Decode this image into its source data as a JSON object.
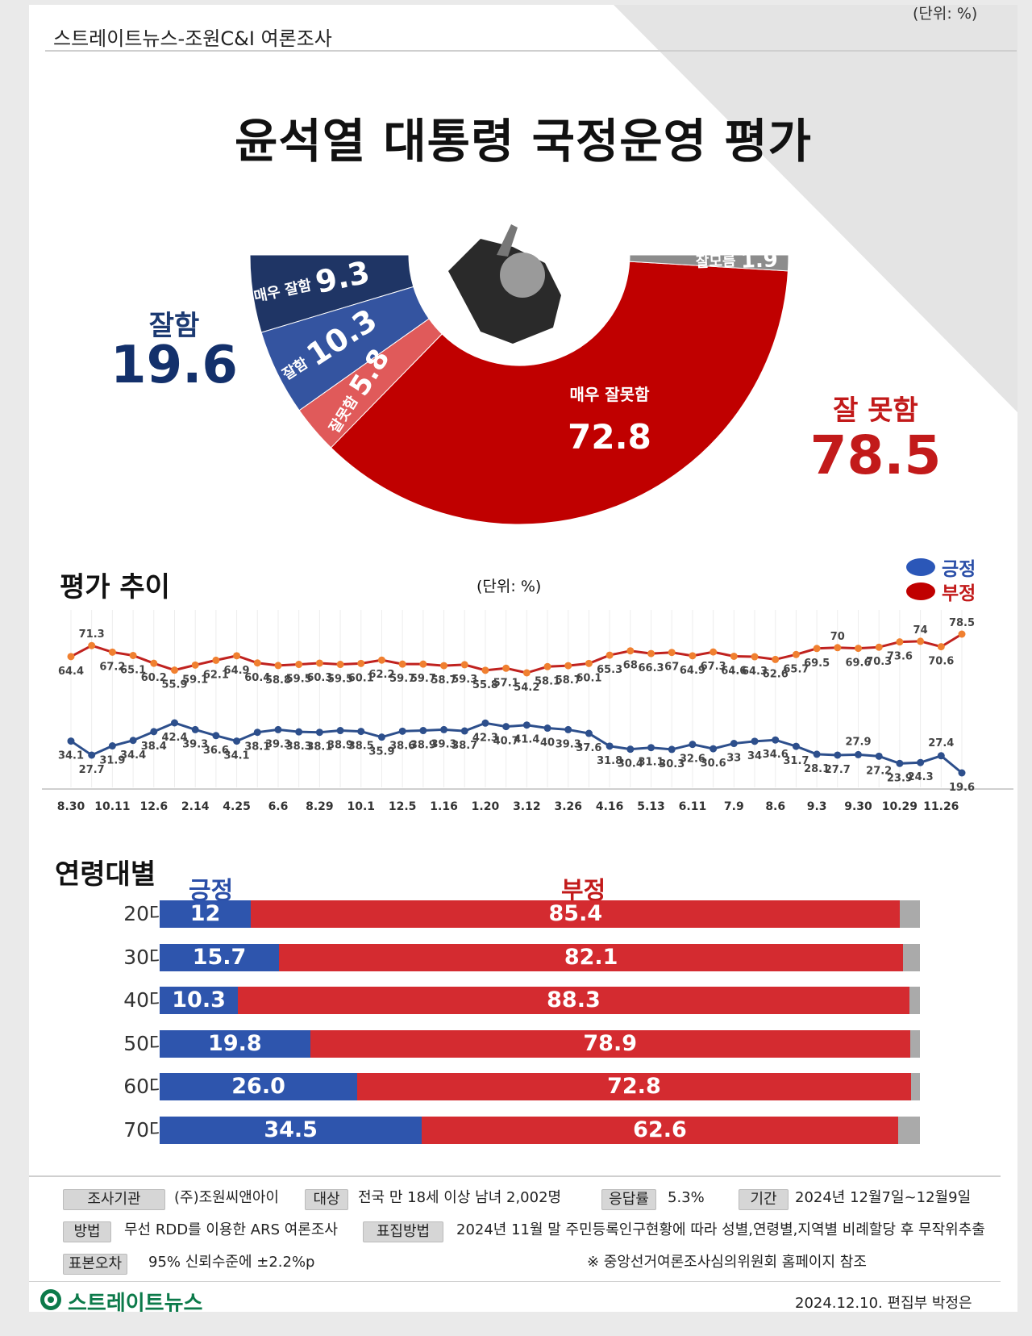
{
  "header": {
    "source": "스트레이트뉴스-조원C&I 여론조사",
    "unit": "(단위: %)",
    "title": "윤석열 대통령 국정운영 평가"
  },
  "summary": {
    "good_label": "잘함",
    "good_value": "19.6",
    "bad_label": "잘 못함",
    "bad_value": "78.5"
  },
  "chart_data": [
    {
      "type": "pie",
      "title": "윤석열 대통령 국정운영 평가",
      "style": "half-donut",
      "slices": [
        {
          "label": "매우 잘함",
          "value": 9.3,
          "color": "#1f3565"
        },
        {
          "label": "잘함",
          "value": 10.3,
          "color": "#3454a0"
        },
        {
          "label": "잘못함",
          "value": 5.8,
          "color": "#e05a5a"
        },
        {
          "label": "매우 잘못함",
          "value": 72.8,
          "color": "#c00000"
        },
        {
          "label": "잘모름",
          "value": 1.9,
          "color": "#8c8c8c"
        }
      ],
      "labels": {
        "very_good": "매우 잘함",
        "good": "잘함",
        "bad": "잘못함",
        "very_bad": "매우 잘못함",
        "dont_know": "잘모름"
      }
    },
    {
      "type": "line",
      "title": "평가 추이",
      "unit": "(단위: %)",
      "x_ticks": [
        "8.30",
        "10.11",
        "12.6",
        "2.14",
        "4.25",
        "6.6",
        "8.29",
        "10.1",
        "12.5",
        "1.16",
        "1.20",
        "3.12",
        "3.26",
        "4.16",
        "5.13",
        "6.11",
        "7.9",
        "8.6",
        "9.3",
        "9.30",
        "10.29",
        "11.26"
      ],
      "series": [
        {
          "name": "긍정",
          "color": "#2d4f8c",
          "values": [
            34.1,
            27.7,
            31.9,
            34.4,
            38.4,
            42.4,
            39.3,
            36.6,
            34.1,
            38.1,
            39.3,
            38.3,
            38.1,
            38.9,
            38.5,
            35.9,
            38.6,
            38.9,
            39.3,
            38.7,
            42.3,
            40.7,
            41.4,
            40.0,
            39.3,
            37.6,
            31.8,
            30.4,
            31.1,
            30.3,
            32.6,
            30.6,
            33,
            34,
            34.6,
            31.7,
            28.1,
            27.7,
            27.9,
            27.2,
            23.9,
            24.3,
            27.4,
            19.6
          ]
        },
        {
          "name": "부정",
          "color": "#c0221f",
          "values": [
            64.4,
            71.3,
            67.2,
            65.1,
            60.2,
            55.9,
            59.1,
            62.1,
            64.9,
            60.4,
            58.8,
            59.5,
            60.3,
            59.5,
            60.1,
            62.2,
            59.7,
            59.7,
            58.7,
            59.3,
            55.8,
            57.1,
            54.2,
            58.1,
            58.7,
            60.1,
            65.3,
            68,
            66.3,
            67,
            64.9,
            67.3,
            64.6,
            64.3,
            62.6,
            65.7,
            69.5,
            70,
            69.6,
            70.3,
            73.6,
            74,
            70.6,
            78.5
          ]
        }
      ],
      "legend": [
        "긍정",
        "부정"
      ]
    },
    {
      "type": "bar",
      "title": "연령대별",
      "orientation": "horizontal-stacked",
      "categories": [
        "20대",
        "30대",
        "40대",
        "50대",
        "60대",
        "70대"
      ],
      "series": [
        {
          "name": "긍정",
          "values": [
            12,
            15.7,
            10.3,
            19.8,
            26.0,
            34.5
          ],
          "labels": [
            "12",
            "15.7",
            "10.3",
            "19.8",
            "26.0",
            "34.5"
          ],
          "color": "#2e55ad"
        },
        {
          "name": "부정",
          "values": [
            85.4,
            82.1,
            88.3,
            78.9,
            72.8,
            62.6
          ],
          "labels": [
            "85.4",
            "82.1",
            "88.3",
            "78.9",
            "72.8",
            "62.6"
          ],
          "color": "#d42b30"
        }
      ]
    }
  ],
  "trend": {
    "title": "평가 추이",
    "unit": "(단위: %)",
    "legend_pos": "긍정",
    "legend_neg": "부정"
  },
  "age": {
    "title": "연령대별",
    "pos_head": "긍정",
    "neg_head": "부정"
  },
  "info": {
    "agency_tag": "조사기관",
    "agency": "(주)조원씨앤아이",
    "target_tag": "대상",
    "target": "전국 만 18세 이상 남녀 2,002명",
    "response_tag": "응답률",
    "response": "5.3%",
    "period_tag": "기간",
    "period": "2024년 12월7일~12월9일",
    "method_tag": "방법",
    "method": "무선 RDD를 이용한 ARS 여론조사",
    "sampling_tag": "표집방법",
    "sampling": "2024년 11월 말 주민등록인구현황에 따라 성별,연령별,지역별 비례할당 후 무작위추출",
    "error_tag": "표본오차",
    "error": "95% 신뢰수준에 ±2.2%p",
    "note": "※ 중앙선거여론조사심의위원회 홈페이지 참조"
  },
  "footer": {
    "logo": "스트레이트뉴스",
    "date_credit": "2024.12.10. 편집부 박정은"
  }
}
